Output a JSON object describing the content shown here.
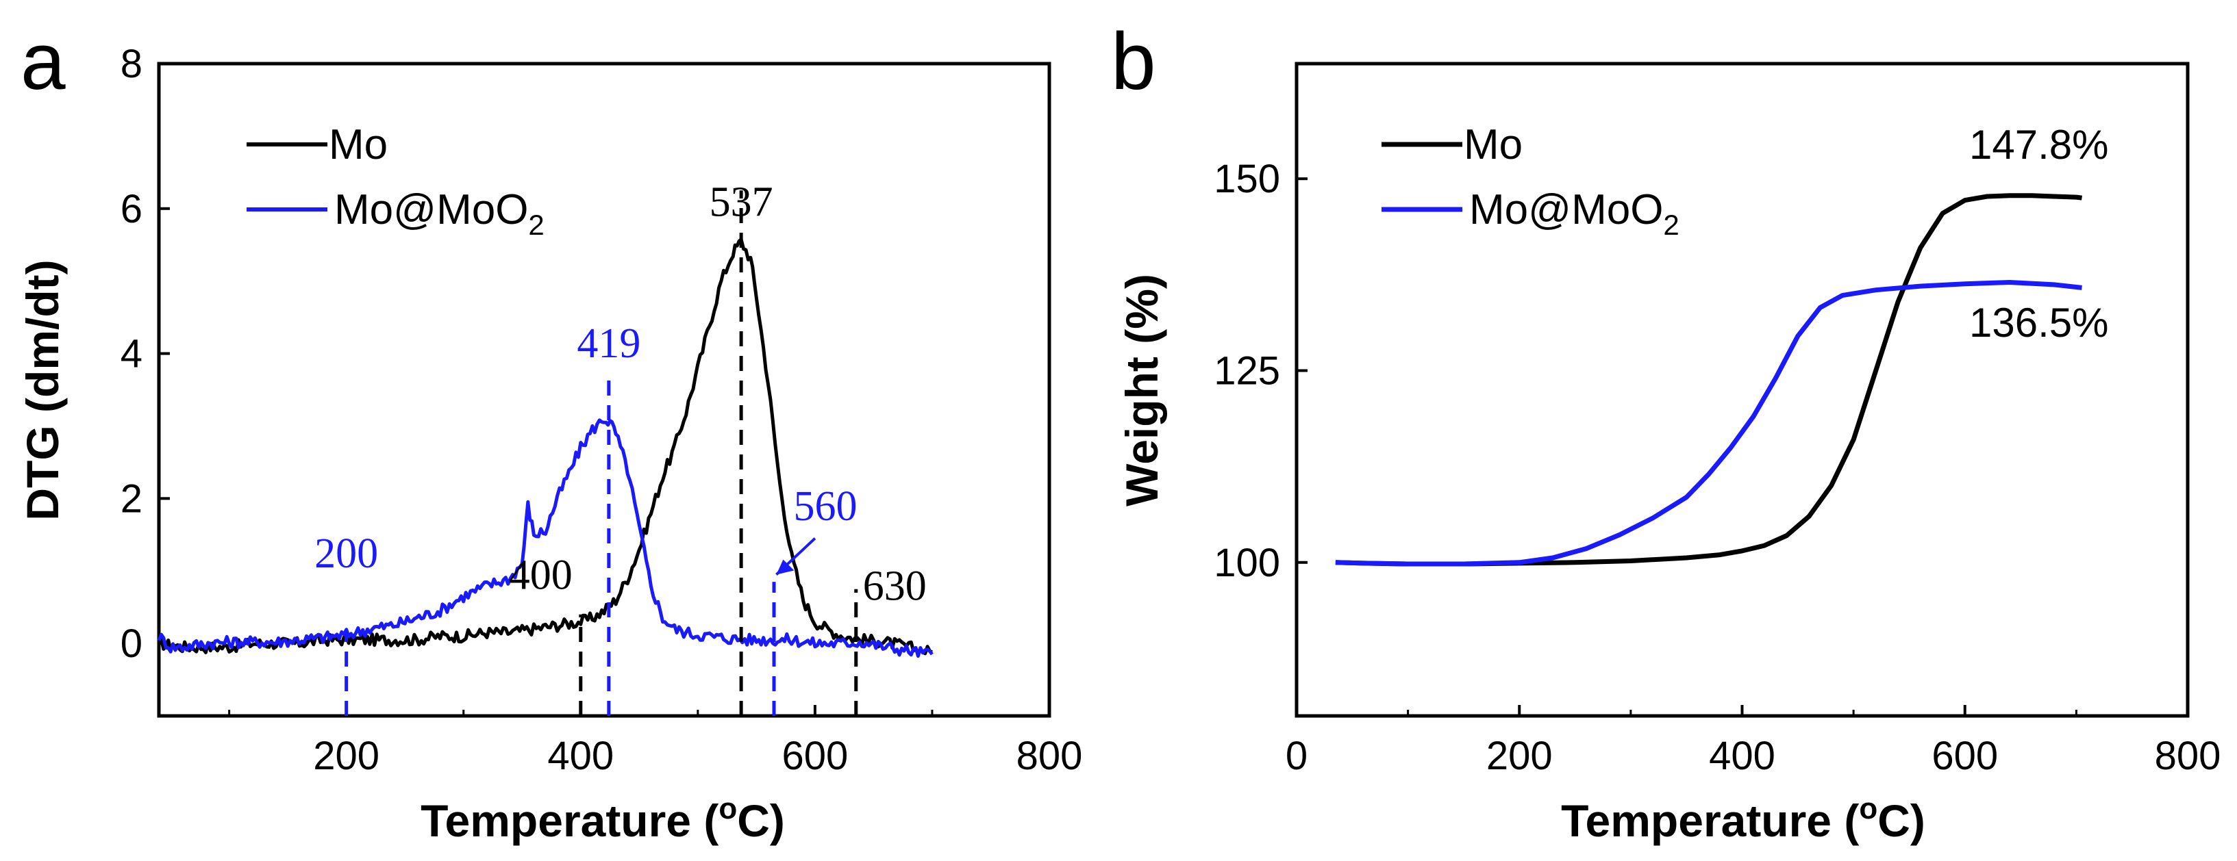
{
  "chart_data": [
    {
      "panel": "a",
      "type": "line",
      "xlabel_main": "Temperature (",
      "xlabel_degree": "o",
      "xlabel_unit": "C)",
      "ylabel": "DTG (dm/dt)",
      "xlim": [
        40,
        800
      ],
      "ylim": [
        -1,
        8
      ],
      "xticks": [
        200,
        400,
        600,
        800
      ],
      "yticks": [
        0,
        2,
        4,
        6,
        8
      ],
      "legend": {
        "placement": "top-left",
        "entries": [
          {
            "name_main": "Mo",
            "name_sub": "",
            "color": "#000000"
          },
          {
            "name_main": "Mo@MoO",
            "name_sub": "2",
            "color": "#1a1aff"
          }
        ]
      },
      "series": [
        {
          "name": "Mo",
          "color": "#000000",
          "x": [
            40,
            60,
            80,
            100,
            120,
            140,
            160,
            180,
            200,
            220,
            240,
            260,
            280,
            300,
            320,
            340,
            360,
            380,
            400,
            410,
            420,
            430,
            440,
            450,
            460,
            470,
            480,
            490,
            500,
            510,
            520,
            530,
            537,
            545,
            550,
            560,
            570,
            580,
            590,
            600,
            610,
            620,
            630,
            640,
            660,
            680,
            700
          ],
          "y": [
            0.0,
            -0.05,
            -0.05,
            -0.05,
            0.0,
            0.0,
            0.0,
            0.05,
            0.05,
            0.05,
            0.05,
            0.05,
            0.1,
            0.1,
            0.15,
            0.15,
            0.2,
            0.25,
            0.3,
            0.35,
            0.45,
            0.6,
            0.9,
            1.3,
            1.8,
            2.3,
            2.7,
            3.2,
            3.8,
            4.4,
            5.0,
            5.4,
            5.55,
            5.3,
            4.8,
            3.6,
            2.2,
            1.2,
            0.6,
            0.3,
            0.2,
            0.12,
            0.08,
            0.05,
            0.02,
            -0.05,
            -0.12
          ]
        },
        {
          "name": "Mo@MoO2",
          "color": "#1a1aff",
          "x": [
            40,
            50,
            60,
            80,
            100,
            120,
            140,
            160,
            180,
            200,
            220,
            240,
            260,
            280,
            300,
            320,
            340,
            350,
            355,
            360,
            370,
            380,
            390,
            400,
            410,
            420,
            425,
            430,
            440,
            450,
            460,
            470,
            480,
            490,
            500,
            520,
            540,
            560,
            580,
            600,
            620,
            640,
            660,
            680,
            700
          ],
          "y": [
            0.1,
            -0.05,
            -0.05,
            0.0,
            0.02,
            0.02,
            0.02,
            0.05,
            0.08,
            0.12,
            0.2,
            0.25,
            0.35,
            0.45,
            0.65,
            0.8,
            0.9,
            1.1,
            1.9,
            1.5,
            1.55,
            2.0,
            2.35,
            2.7,
            2.95,
            3.1,
            3.05,
            2.9,
            2.4,
            1.6,
            0.8,
            0.35,
            0.2,
            0.15,
            0.12,
            0.08,
            0.05,
            0.05,
            0.05,
            0.0,
            0.0,
            0.02,
            -0.05,
            -0.1,
            -0.15
          ]
        }
      ],
      "annotations": [
        {
          "label": "537",
          "x": 537,
          "color": "#000000"
        },
        {
          "label": "400",
          "x": 400,
          "color": "#000000"
        },
        {
          "label": "630",
          "x": 635,
          "color": "#000000"
        },
        {
          "label": "200",
          "x": 200,
          "color": "#1a1aff"
        },
        {
          "label": "419",
          "x": 424,
          "color": "#1a1aff"
        },
        {
          "label": "560",
          "x": 565,
          "color": "#1a1aff"
        }
      ]
    },
    {
      "panel": "b",
      "type": "line",
      "xlabel_main": "Temperature (",
      "xlabel_degree": "o",
      "xlabel_unit": "C)",
      "ylabel": "Weight (%)",
      "xlim": [
        0,
        800
      ],
      "ylim": [
        80,
        165
      ],
      "xticks": [
        0,
        200,
        400,
        600,
        800
      ],
      "yticks": [
        100,
        125,
        150
      ],
      "legend": {
        "placement": "top-left",
        "entries": [
          {
            "name_main": "Mo",
            "name_sub": "",
            "color": "#000000"
          },
          {
            "name_main": "Mo@MoO",
            "name_sub": "2",
            "color": "#1a1aff"
          }
        ]
      },
      "series": [
        {
          "name": "Mo",
          "color": "#000000",
          "x": [
            35,
            60,
            100,
            150,
            200,
            250,
            300,
            350,
            380,
            400,
            420,
            440,
            460,
            480,
            500,
            520,
            540,
            560,
            580,
            600,
            620,
            640,
            660,
            680,
            700,
            705
          ],
          "y": [
            100,
            99.9,
            99.8,
            99.8,
            99.9,
            100.0,
            100.2,
            100.6,
            101.0,
            101.5,
            102.2,
            103.5,
            106,
            110,
            116,
            125,
            134,
            141,
            145.5,
            147.2,
            147.7,
            147.8,
            147.8,
            147.7,
            147.6,
            147.5
          ]
        },
        {
          "name": "Mo@MoO2",
          "color": "#1a1aff",
          "x": [
            35,
            60,
            100,
            150,
            200,
            230,
            260,
            290,
            320,
            350,
            370,
            390,
            410,
            430,
            450,
            470,
            490,
            520,
            560,
            600,
            640,
            680,
            705
          ],
          "y": [
            100,
            99.9,
            99.8,
            99.8,
            100.0,
            100.6,
            101.8,
            103.6,
            105.8,
            108.5,
            111.5,
            115,
            119,
            124,
            129.5,
            133.2,
            134.8,
            135.5,
            136.0,
            136.3,
            136.5,
            136.2,
            135.8
          ]
        }
      ],
      "annotations": [
        {
          "label": "147.8%"
        },
        {
          "label": "136.5%"
        }
      ]
    }
  ]
}
